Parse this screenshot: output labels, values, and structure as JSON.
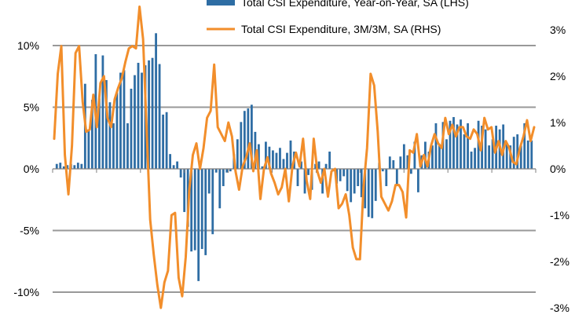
{
  "chart_data": {
    "type": "bar",
    "title": "",
    "xlabel": "",
    "ylabel": "",
    "grid": true,
    "legend_position": "top",
    "ylim_left": [
      -12.5,
      12.5
    ],
    "yticks_left": [
      "10%",
      "5%",
      "0%",
      "-5%",
      "-10%"
    ],
    "ylim_right": [
      -3.0,
      3.5
    ],
    "yticks_right": [
      "3%",
      "2%",
      "1%",
      "0%",
      "-1%",
      "-2%",
      "-3%"
    ],
    "colors": {
      "bars": "#2e6da4",
      "line": "#f28e2b",
      "grid": "#999999"
    },
    "series": [
      {
        "name": "Total CSI Expenditure, Year-on-Year, SA (LHS)",
        "type": "bar",
        "axis": "left",
        "values": [
          0.4,
          0.5,
          0.2,
          0.3,
          0.4,
          0.3,
          0.5,
          0.4,
          6.9,
          3.2,
          5.6,
          9.3,
          5.7,
          9.2,
          7.2,
          5.4,
          3.7,
          6.2,
          7.8,
          8.0,
          3.7,
          6.5,
          7.6,
          8.6,
          7.8,
          8.4,
          8.8,
          9.0,
          11.0,
          8.5,
          4.4,
          4.6,
          1.2,
          0.3,
          0.6,
          -0.7,
          -3.5,
          -4.7,
          -6.7,
          -6.6,
          -9.1,
          -6.5,
          -7.0,
          -2.0,
          -5.3,
          -0.3,
          -3.2,
          -1.4,
          -0.3,
          -0.2,
          1.2,
          2.4,
          3.8,
          4.7,
          4.9,
          5.2,
          3.0,
          2.0,
          0.2,
          2.2,
          1.8,
          1.5,
          1.3,
          1.7,
          0.8,
          1.3,
          2.3,
          1.4,
          -1.4,
          0.6,
          -2.0,
          -0.5,
          -1.7,
          0.4,
          0.6,
          -2.0,
          0.4,
          1.4,
          -0.2,
          -1.2,
          -1.0,
          -0.6,
          -1.8,
          -2.7,
          -2.0,
          -1.4,
          -2.3,
          -3.2,
          -3.9,
          -4.0,
          -2.6,
          0.5,
          -0.2,
          -1.4,
          1.0,
          0.7,
          -1.4,
          1.0,
          2.0,
          1.1,
          -0.4,
          2.2,
          -1.9,
          1.1,
          2.2,
          1.4,
          1.9,
          3.7,
          2.0,
          3.8,
          2.4,
          3.9,
          4.2,
          3.6,
          4.0,
          2.8,
          3.7,
          1.4,
          1.7,
          3.9,
          3.5,
          3.2,
          1.9,
          2.4,
          3.5,
          3.2,
          3.6,
          2.1,
          1.9,
          2.6,
          2.8,
          1.9,
          3.7,
          2.3,
          2.3
        ]
      },
      {
        "name": "Total CSI Expenditure, 3M/3M, SA (RHS)",
        "type": "line",
        "axis": "right",
        "values": [
          0.65,
          2.05,
          2.65,
          0.3,
          -0.55,
          0.5,
          2.5,
          2.65,
          1.45,
          0.8,
          0.85,
          1.6,
          0.9,
          1.85,
          2.0,
          1.1,
          0.9,
          1.5,
          1.75,
          1.95,
          2.3,
          2.6,
          2.65,
          2.6,
          3.5,
          2.8,
          0.85,
          -1.1,
          -1.85,
          -2.5,
          -3.0,
          -2.45,
          -2.2,
          -1.0,
          -0.95,
          -2.35,
          -2.75,
          -1.9,
          -0.45,
          0.3,
          0.55,
          0.0,
          0.45,
          1.1,
          1.25,
          2.25,
          0.9,
          0.75,
          0.6,
          1.0,
          0.7,
          -0.05,
          -0.45,
          0.05,
          0.25,
          0.55,
          -0.05,
          0.4,
          -0.65,
          0.0,
          0.25,
          -0.1,
          -0.3,
          -0.55,
          -0.4,
          0.0,
          -0.7,
          0.05,
          0.35,
          0.05,
          0.65,
          -0.25,
          -0.65,
          0.65,
          -0.05,
          -0.3,
          0.0,
          -0.6,
          -0.05,
          0.0,
          -0.85,
          -0.75,
          -0.55,
          -1.0,
          -1.7,
          -1.95,
          -1.95,
          -0.4,
          0.45,
          2.05,
          1.8,
          0.8,
          -0.6,
          -0.75,
          -0.9,
          -0.7,
          -0.35,
          -0.35,
          -0.5,
          -1.05,
          0.4,
          0.35,
          0.75,
          0.05,
          0.3,
          0.05,
          0.5,
          0.75,
          0.55,
          0.45,
          1.1,
          0.75,
          0.95,
          0.7,
          0.9,
          0.9,
          0.7,
          0.65,
          0.85,
          0.75,
          0.4,
          1.1,
          0.85,
          0.9,
          0.35,
          0.6,
          0.3,
          0.6,
          0.45,
          0.15,
          0.1,
          0.45,
          0.7,
          1.05,
          0.6,
          0.9
        ]
      }
    ]
  }
}
